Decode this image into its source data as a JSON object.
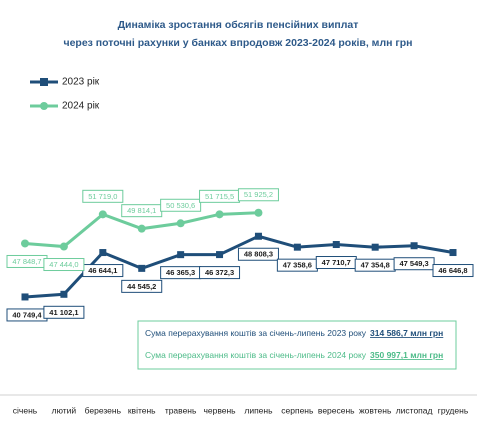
{
  "chart_data": {
    "type": "line",
    "title": "Динаміка зростання обсягів пенсійних виплат",
    "subtitle": "через поточні рахунки у банках впродовж 2023-2024 років, млн грн",
    "categories": [
      "січень",
      "лютий",
      "березень",
      "квітень",
      "травень",
      "червень",
      "липень",
      "серпень",
      "вересень",
      "жовтень",
      "листопад",
      "грудень"
    ],
    "series": [
      {
        "name": "2023 рік",
        "color": "#1f4e79",
        "values": [
          40749.4,
          41102.1,
          46644.1,
          44545.2,
          46365.3,
          46372.3,
          48808.3,
          47358.6,
          47710.7,
          47354.8,
          47549.3,
          46646.8
        ],
        "value_labels": [
          "40 749,4",
          "41 102,1",
          "46 644,1",
          "44 545,2",
          "46 365,3",
          "46 372,3",
          "48 808,3",
          "47 358,6",
          "47 710,7",
          "47 354,8",
          "47 549,3",
          "46 646,8"
        ]
      },
      {
        "name": "2024 рік",
        "color": "#6dcc9c",
        "values": [
          47848.7,
          47444.0,
          51719.0,
          49814.1,
          50530.6,
          51715.5,
          51925.2,
          null,
          null,
          null,
          null,
          null
        ],
        "value_labels": [
          "47 848,7",
          "47 444,0",
          "51 719,0",
          "49 814,1",
          "50 530,6",
          "51 715,5",
          "51 925,2",
          null,
          null,
          null,
          null,
          null
        ]
      }
    ],
    "ylim": [
      28000,
      58000
    ],
    "annotations": [
      {
        "text": "Сума перерахування коштів  за січень-липень 2023 року",
        "value": "314 586,7 млн грн"
      },
      {
        "text": "Сума перерахування коштів  за січень-липень 2024 року",
        "value": "350 997,1 млн грн"
      }
    ]
  }
}
